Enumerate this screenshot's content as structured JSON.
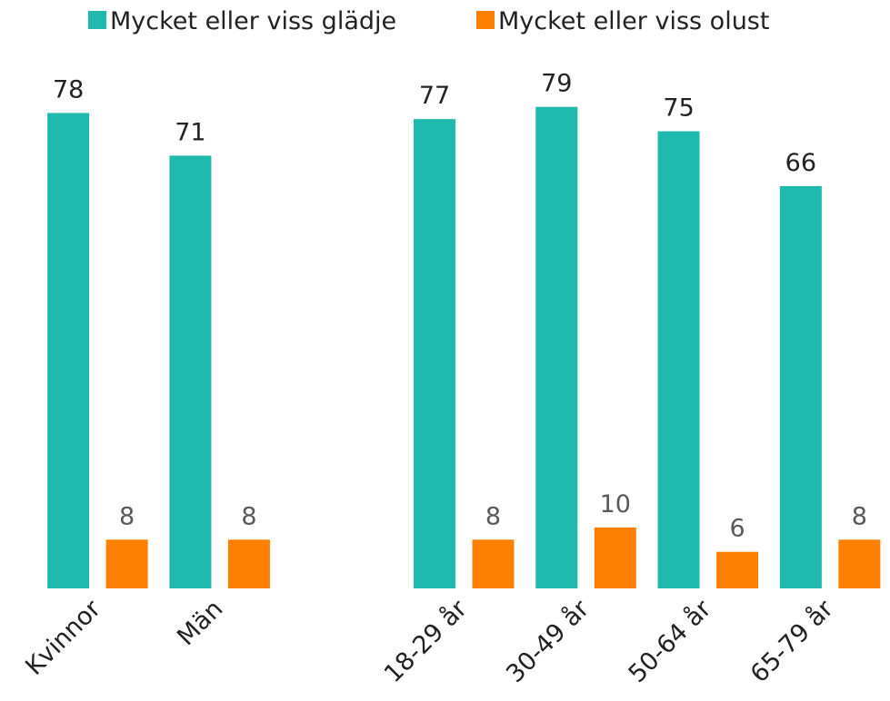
{
  "chart_data": {
    "type": "bar",
    "categories": [
      "Kvinnor",
      "Män",
      null,
      "18-29 år",
      "30-49 år",
      "50-64 år",
      "65-79 år"
    ],
    "series": [
      {
        "name": "Mycket eller viss glädje",
        "color": "#20b9ad",
        "values": [
          78,
          71,
          null,
          77,
          79,
          75,
          66
        ]
      },
      {
        "name": "Mycket eller viss olust",
        "color": "#ff8000",
        "values": [
          8,
          8,
          null,
          8,
          10,
          6,
          8
        ]
      }
    ],
    "ylim": [
      0,
      80
    ]
  }
}
